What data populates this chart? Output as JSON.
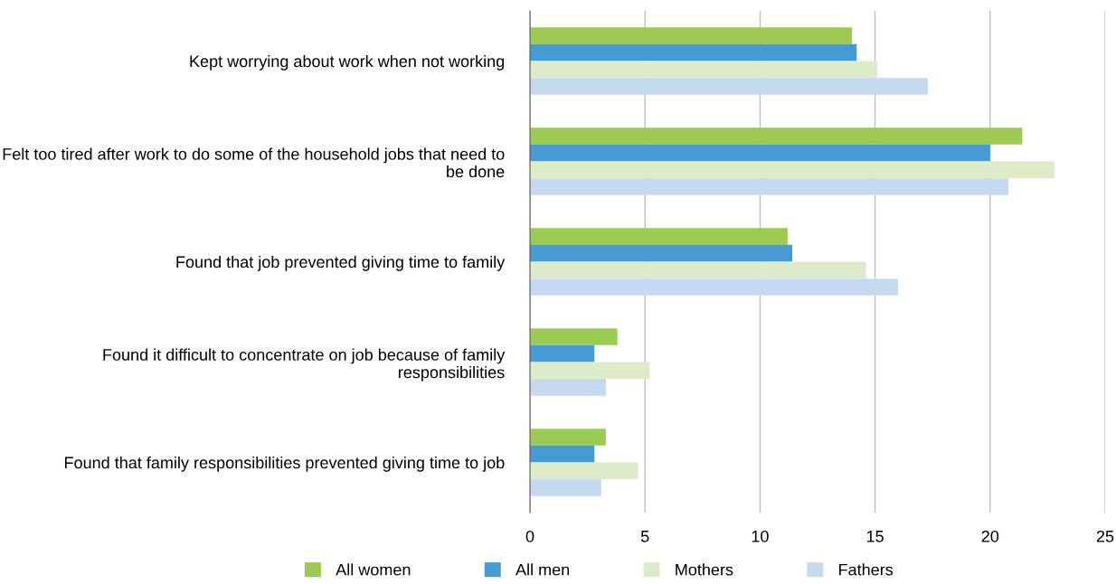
{
  "chart_data": {
    "type": "bar",
    "orientation": "horizontal",
    "categories": [
      "Kept worrying about work when not working",
      "Felt too tired after work to do some of the household jobs that need to be done",
      "Found that job prevented giving time to family",
      "Found it difficult to concentrate on job because of family responsibilities",
      "Found that family responsibilities prevented giving time to job"
    ],
    "series": [
      {
        "name": "All women",
        "color": "#9bcb52",
        "values": [
          14.0,
          21.4,
          11.2,
          3.8,
          3.3
        ]
      },
      {
        "name": "All men",
        "color": "#479bd4",
        "values": [
          14.2,
          20.0,
          11.4,
          2.8,
          2.8
        ]
      },
      {
        "name": "Mothers",
        "color": "#deebc8",
        "values": [
          15.1,
          22.8,
          14.6,
          5.2,
          4.7
        ]
      },
      {
        "name": "Fathers",
        "color": "#c5daef",
        "values": [
          17.3,
          20.8,
          16.0,
          3.3,
          3.1
        ]
      }
    ],
    "xlim": [
      0,
      25
    ],
    "xticks": [
      0,
      5,
      10,
      15,
      20,
      25
    ],
    "grid": "x",
    "legend": "bottom"
  }
}
